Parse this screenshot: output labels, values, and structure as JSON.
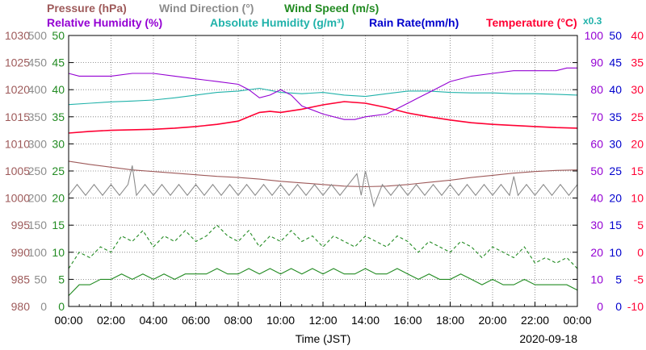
{
  "chart_data": {
    "type": "line",
    "date": "2020-09-18",
    "xlabel": "Time (JST)",
    "x_ticks": [
      "00:00",
      "02:00",
      "04:00",
      "06:00",
      "08:00",
      "10:00",
      "12:00",
      "14:00",
      "16:00",
      "18:00",
      "20:00",
      "22:00",
      "00:00"
    ],
    "header_row1": [
      {
        "text": "Pressure (hPa)",
        "color": "#9e5a5a"
      },
      {
        "text": "Wind Direction (°)",
        "color": "#8c8c8c"
      },
      {
        "text": "Wind Speed (m/s)",
        "color": "#228b22"
      }
    ],
    "header_row2": [
      {
        "text": "Relative Humidity (%)",
        "color": "#9400d3"
      },
      {
        "text": "Absolute Humidity (g/m³)",
        "color": "#20b2aa"
      },
      {
        "text": "Rain Rate(mm/h)",
        "color": "#0000cd"
      },
      {
        "text": "Temperature (°C)",
        "color": "#ff0033"
      },
      {
        "text": "x0.3",
        "color": "#20b2aa"
      }
    ],
    "axes": {
      "pressure": {
        "min": 980,
        "max": 1030,
        "ticks": [
          "1030",
          "1025",
          "1020",
          "1015",
          "1010",
          "1005",
          "1000",
          "995",
          "990",
          "985",
          "980"
        ],
        "color": "#9e5a5a"
      },
      "wind_dir": {
        "min": 0,
        "max": 500,
        "ticks": [
          "500",
          "450",
          "400",
          "350",
          "300",
          "250",
          "200",
          "150",
          "100",
          "50",
          "0"
        ],
        "color": "#8c8c8c"
      },
      "wind_speed": {
        "min": 0,
        "max": 50,
        "ticks": [
          "50",
          "45",
          "40",
          "35",
          "30",
          "25",
          "20",
          "15",
          "10",
          "5",
          "0"
        ],
        "color": "#228b22"
      },
      "humidity": {
        "min": 0,
        "max": 100,
        "ticks": [
          "100",
          "90",
          "80",
          "70",
          "60",
          "50",
          "40",
          "30",
          "20",
          "10",
          "0"
        ],
        "color": "#9400d3"
      },
      "rain": {
        "min": 0,
        "max": 50,
        "ticks": [
          "50",
          "45",
          "40",
          "35",
          "30",
          "25",
          "20",
          "15",
          "10",
          "5",
          "0"
        ],
        "color": "#0000cd"
      },
      "temperature": {
        "min": -10,
        "max": 40,
        "ticks": [
          "40",
          "35",
          "30",
          "25",
          "20",
          "15",
          "10",
          "5",
          "0",
          "-5",
          "-10"
        ],
        "color": "#ff0033"
      }
    },
    "series": [
      {
        "key": "temperature",
        "axis": "temperature",
        "color": "#ff0033",
        "x": [
          0,
          1,
          2,
          3,
          4,
          5,
          6,
          7,
          8,
          8.5,
          9,
          9.5,
          10,
          11,
          12,
          13,
          14,
          15,
          16,
          17,
          18,
          19,
          20,
          21,
          22,
          23,
          24
        ],
        "y": [
          22.0,
          22.3,
          22.5,
          22.6,
          22.7,
          22.9,
          23.2,
          23.6,
          24.2,
          25.0,
          25.8,
          26.0,
          25.8,
          26.4,
          27.2,
          27.8,
          27.5,
          26.7,
          25.7,
          25.0,
          24.4,
          23.9,
          23.6,
          23.4,
          23.2,
          23.0,
          22.9
        ]
      },
      {
        "key": "abs_humidity",
        "axis": "humidity",
        "color": "#20b2aa",
        "x": [
          0,
          1,
          2,
          3,
          4,
          5,
          6,
          7,
          8,
          9,
          10,
          11,
          12,
          13,
          14,
          15,
          16,
          17,
          18,
          19,
          20,
          21,
          22,
          23,
          24
        ],
        "y": [
          74.5,
          75.0,
          75.5,
          75.8,
          76.2,
          77.0,
          78.0,
          79.0,
          79.5,
          80.5,
          79.0,
          78.5,
          79.0,
          78.0,
          77.5,
          78.5,
          79.5,
          79.5,
          79.0,
          78.8,
          78.8,
          78.5,
          78.5,
          78.3,
          78.0
        ]
      },
      {
        "key": "rel_humidity",
        "axis": "humidity",
        "color": "#9400d3",
        "x": [
          0,
          0.5,
          1,
          2,
          3,
          4,
          5,
          6,
          7,
          8,
          8.5,
          9,
          9.5,
          10,
          10.5,
          11,
          12,
          13,
          13.5,
          14,
          15,
          16,
          16.5,
          17,
          18,
          19,
          20,
          21,
          22,
          23,
          23.5,
          24
        ],
        "y": [
          86,
          85,
          85,
          85,
          86,
          86,
          85,
          84,
          83,
          82,
          80,
          77,
          78,
          80,
          78,
          74,
          71,
          69,
          69,
          70,
          71,
          75,
          77,
          79,
          83,
          85,
          86,
          87,
          87,
          87,
          88,
          88
        ]
      },
      {
        "key": "pressure",
        "axis": "pressure",
        "color": "#9e5a5a",
        "x": [
          0,
          1,
          2,
          3,
          4,
          5,
          6,
          7,
          8,
          9,
          10,
          11,
          12,
          13,
          14,
          15,
          16,
          17,
          18,
          19,
          20,
          21,
          22,
          23,
          24
        ],
        "y": [
          1006.8,
          1006.2,
          1005.7,
          1005.2,
          1004.9,
          1004.6,
          1004.3,
          1004.0,
          1003.8,
          1003.5,
          1003.1,
          1002.8,
          1002.5,
          1002.2,
          1002.1,
          1002.2,
          1002.5,
          1002.9,
          1003.3,
          1003.8,
          1004.2,
          1004.6,
          1004.9,
          1005.1,
          1005.2
        ]
      },
      {
        "key": "wind_direction",
        "axis": "wind_dir",
        "color": "#8c8c8c",
        "x": [
          0,
          0.4,
          0.8,
          1.2,
          1.6,
          2.0,
          2.4,
          2.8,
          3.0,
          3.2,
          3.6,
          4.0,
          4.4,
          4.8,
          5.2,
          5.6,
          6.0,
          6.4,
          6.8,
          7.2,
          7.6,
          8.0,
          8.4,
          8.8,
          9.2,
          9.6,
          10.0,
          10.4,
          10.8,
          11.2,
          11.6,
          12.0,
          12.4,
          12.8,
          13.2,
          13.6,
          13.8,
          14.0,
          14.4,
          14.8,
          15.2,
          15.6,
          16.0,
          16.4,
          16.8,
          17.2,
          17.6,
          18.0,
          18.4,
          18.8,
          19.2,
          19.6,
          20.0,
          20.4,
          20.8,
          21.0,
          21.2,
          21.6,
          22.0,
          22.4,
          22.8,
          23.2,
          23.6,
          24.0
        ],
        "y": [
          205,
          225,
          205,
          225,
          205,
          225,
          205,
          225,
          260,
          205,
          225,
          205,
          225,
          205,
          225,
          205,
          225,
          205,
          225,
          205,
          225,
          205,
          225,
          205,
          225,
          205,
          225,
          205,
          225,
          205,
          225,
          205,
          225,
          205,
          225,
          245,
          205,
          250,
          185,
          225,
          205,
          225,
          205,
          225,
          205,
          225,
          205,
          225,
          205,
          225,
          205,
          225,
          205,
          225,
          205,
          240,
          205,
          225,
          205,
          225,
          205,
          225,
          205,
          225
        ]
      },
      {
        "key": "wind_speed_gust",
        "axis": "wind_speed",
        "color": "#228b22",
        "x": [
          0,
          0.5,
          1,
          1.5,
          2,
          2.5,
          3,
          3.5,
          4,
          4.5,
          5,
          5.5,
          6,
          6.5,
          7,
          7.5,
          8,
          8.5,
          9,
          9.5,
          10,
          10.5,
          11,
          11.5,
          12,
          12.5,
          13,
          13.5,
          14,
          14.5,
          15,
          15.5,
          16,
          16.5,
          17,
          17.5,
          18,
          18.5,
          19,
          19.5,
          20,
          20.5,
          21,
          21.5,
          22,
          22.5,
          23,
          23.5,
          24
        ],
        "y": [
          7,
          10,
          9,
          11,
          10,
          13,
          12,
          14,
          11,
          13,
          12,
          14,
          12,
          13,
          15,
          13,
          12,
          14,
          11,
          13,
          12,
          14,
          12,
          13,
          11,
          13,
          12,
          11,
          13,
          12,
          11,
          13,
          12,
          10,
          12,
          11,
          10,
          12,
          11,
          9,
          11,
          10,
          9,
          11,
          8,
          9,
          8,
          9,
          7
        ]
      },
      {
        "key": "wind_speed_mean",
        "axis": "wind_speed",
        "color": "#228b22",
        "x": [
          0,
          0.5,
          1,
          1.5,
          2,
          2.5,
          3,
          3.5,
          4,
          4.5,
          5,
          5.5,
          6,
          6.5,
          7,
          7.5,
          8,
          8.5,
          9,
          9.5,
          10,
          10.5,
          11,
          11.5,
          12,
          12.5,
          13,
          13.5,
          14,
          14.5,
          15,
          15.5,
          16,
          16.5,
          17,
          17.5,
          18,
          18.5,
          19,
          19.5,
          20,
          20.5,
          21,
          21.5,
          22,
          22.5,
          23,
          23.5,
          24
        ],
        "y": [
          2,
          4,
          4,
          5,
          5,
          6,
          5,
          6,
          5,
          6,
          5,
          6,
          6,
          6,
          7,
          6,
          6,
          7,
          6,
          7,
          6,
          7,
          6,
          7,
          6,
          7,
          6,
          6,
          7,
          6,
          6,
          7,
          6,
          5,
          6,
          5,
          5,
          6,
          5,
          4,
          5,
          4,
          4,
          5,
          4,
          4,
          4,
          4,
          3
        ]
      }
    ]
  }
}
